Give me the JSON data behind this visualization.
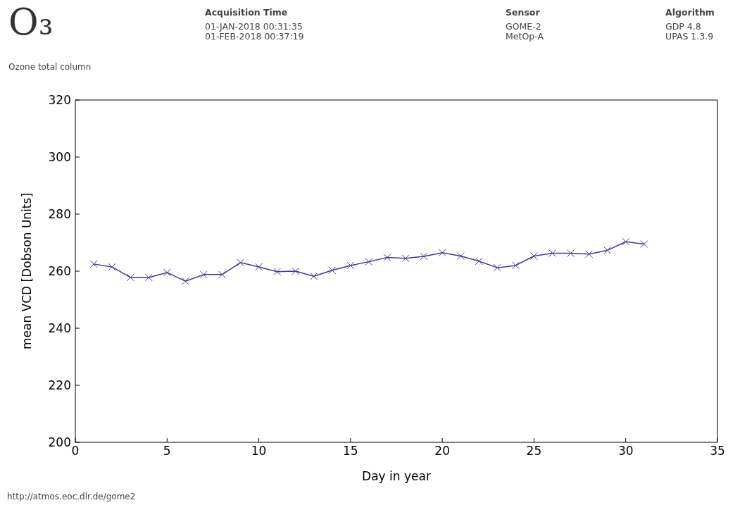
{
  "chart_data": {
    "type": "line",
    "title": "O₃",
    "subtitle": "Ozone total column",
    "xlabel": "Day in year",
    "ylabel": "mean VCD [Dobson Units]",
    "annotations": [
      "Acquisition Time",
      "01-JAN-2018 00:31:35\n01-FEB-2018 00:37:19",
      "Sensor",
      "GOME-2\nMetOp-A",
      "Algorithm",
      "GDP 4.8\nUPAS 1.3.9",
      "http://atmos.eoc.dlr.de/gome2"
    ],
    "x": [
      1,
      2,
      3,
      4,
      5,
      6,
      7,
      8,
      9,
      10,
      11,
      12,
      13,
      14,
      15,
      16,
      17,
      18,
      19,
      20,
      21,
      22,
      23,
      24,
      25,
      26,
      27,
      28,
      29,
      30,
      31
    ],
    "series": [
      {
        "color": "#3b3b9a",
        "values": [
          262.5,
          261.5,
          257.8,
          257.8,
          259.5,
          256.5,
          258.8,
          258.8,
          263,
          261.5,
          259.8,
          260,
          258.2,
          260.3,
          262,
          263.3,
          264.8,
          264.5,
          265.2,
          266.5,
          265.3,
          263.5,
          261.2,
          262,
          265.3,
          266.3,
          266.3,
          266,
          267.3,
          270.3,
          269.5
        ]
      }
    ],
    "xlim": [
      0,
      35
    ],
    "xticks": [
      0,
      5,
      10,
      15,
      20,
      25,
      30,
      35
    ],
    "ylim": [
      200,
      320
    ],
    "yticks": [
      200,
      220,
      240,
      260,
      280,
      300,
      320
    ],
    "marker": "cross",
    "line_style": "solid"
  }
}
